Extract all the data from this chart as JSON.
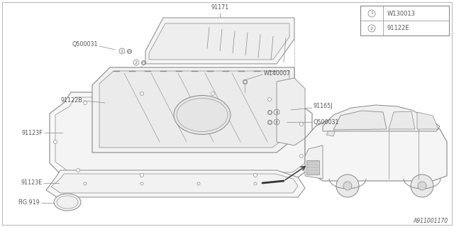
{
  "bg_color": "#ffffff",
  "line_color": "#888888",
  "text_color": "#555555",
  "dark_line": "#999999",
  "diagram_id": "A911001170",
  "fig_width": 6.4,
  "fig_height": 3.2,
  "dpi": 100,
  "legend_items": [
    {
      "num": "1",
      "code": "W130013"
    },
    {
      "num": "2",
      "code": "91122E"
    }
  ],
  "label_fontsize": 5.8,
  "legend_fontsize": 6.0
}
